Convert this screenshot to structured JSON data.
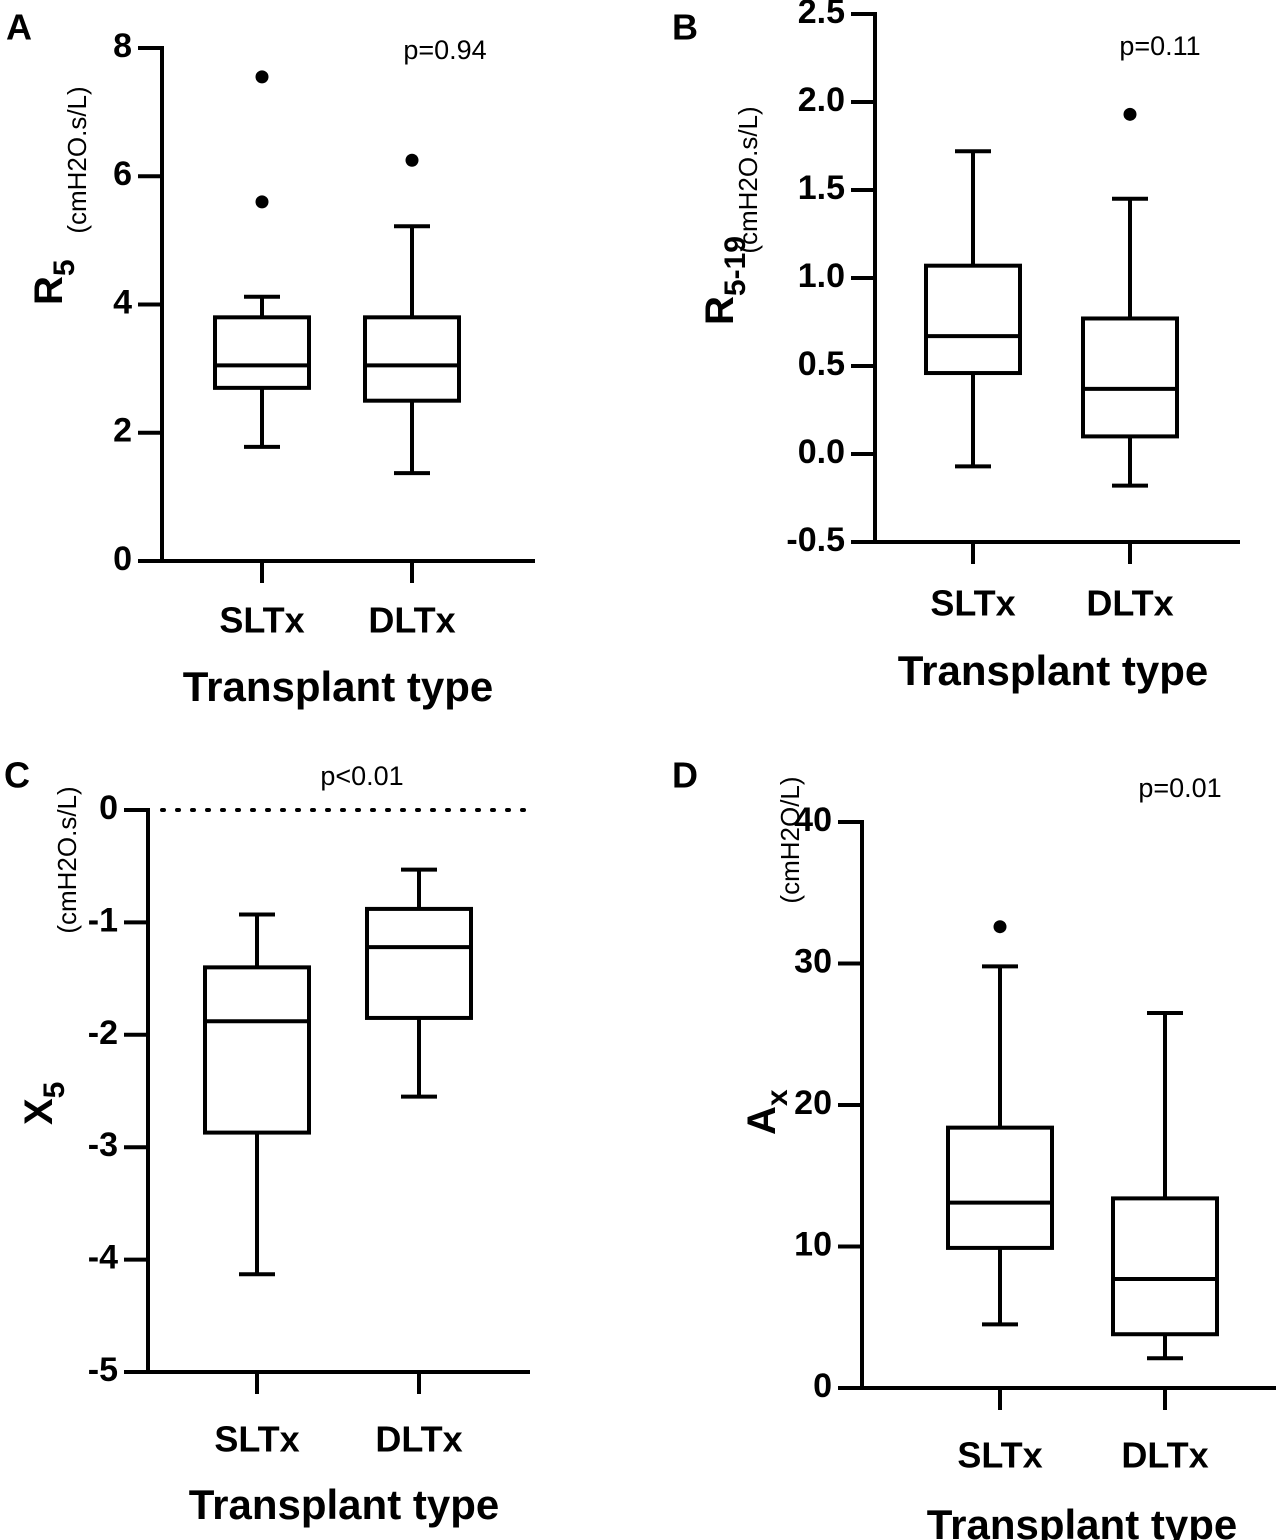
{
  "chart_data": [
    {
      "panel": "A",
      "type": "boxplot",
      "pvalue": "p=0.94",
      "ylabel": "R",
      "ylabel_sub": "5",
      "ylabel_unit": "(cmH2O.s/L)",
      "xlabel": "Transplant type",
      "categories": [
        "SLTx",
        "DLTx"
      ],
      "ylim": [
        0,
        8
      ],
      "yticks": [
        "0",
        "2",
        "4",
        "6",
        "8"
      ],
      "ytick_values": [
        0,
        2,
        4,
        6,
        8
      ],
      "boxes": [
        {
          "category": "SLTx",
          "whisker_low": 1.78,
          "q1": 2.7,
          "median": 3.05,
          "q3": 3.8,
          "whisker_high": 4.12,
          "outliers": [
            5.6,
            7.55
          ]
        },
        {
          "category": "DLTx",
          "whisker_low": 1.37,
          "q1": 2.5,
          "median": 3.05,
          "q3": 3.8,
          "whisker_high": 5.22,
          "outliers": [
            6.25
          ]
        }
      ]
    },
    {
      "panel": "B",
      "type": "boxplot",
      "pvalue": "p=0.11",
      "ylabel": "R",
      "ylabel_sub": "5-19",
      "ylabel_unit": "(cmH2O.s/L)",
      "xlabel": "Transplant type",
      "categories": [
        "SLTx",
        "DLTx"
      ],
      "ylim": [
        -0.5,
        2.5
      ],
      "yticks": [
        "-0.5",
        "0.0",
        "0.5",
        "1.0",
        "1.5",
        "2.0",
        "2.5"
      ],
      "ytick_values": [
        -0.5,
        0,
        0.5,
        1.0,
        1.5,
        2.0,
        2.5
      ],
      "boxes": [
        {
          "category": "SLTx",
          "whisker_low": -0.07,
          "q1": 0.46,
          "median": 0.67,
          "q3": 1.07,
          "whisker_high": 1.72,
          "outliers": []
        },
        {
          "category": "DLTx",
          "whisker_low": -0.18,
          "q1": 0.1,
          "median": 0.37,
          "q3": 0.77,
          "whisker_high": 1.45,
          "outliers": [
            1.93
          ]
        }
      ]
    },
    {
      "panel": "C",
      "type": "boxplot",
      "pvalue": "p<0.01",
      "ylabel": "X",
      "ylabel_sub": "5",
      "ylabel_unit": "(cmH2O.s/L)",
      "xlabel": "Transplant type",
      "categories": [
        "SLTx",
        "DLTx"
      ],
      "ylim": [
        -5,
        0
      ],
      "yticks": [
        "0",
        "-1",
        "-2",
        "-3",
        "-4",
        "-5"
      ],
      "ytick_values": [
        0,
        -1,
        -2,
        -3,
        -4,
        -5
      ],
      "reference_line": 0,
      "boxes": [
        {
          "category": "SLTx",
          "whisker_low": -4.13,
          "q1": -2.87,
          "median": -1.88,
          "q3": -1.4,
          "whisker_high": -0.93,
          "outliers": []
        },
        {
          "category": "DLTx",
          "whisker_low": -2.55,
          "q1": -1.85,
          "median": -1.22,
          "q3": -0.88,
          "whisker_high": -0.53,
          "outliers": []
        }
      ]
    },
    {
      "panel": "D",
      "type": "boxplot",
      "pvalue": "p=0.01",
      "ylabel": "A",
      "ylabel_sub": "x",
      "ylabel_unit": "(cmH2O/L)",
      "xlabel": "Transplant type",
      "categories": [
        "SLTx",
        "DLTx"
      ],
      "ylim": [
        0,
        40
      ],
      "yticks": [
        "0",
        "10",
        "20",
        "30",
        "40"
      ],
      "ytick_values": [
        0,
        10,
        20,
        30,
        40
      ],
      "boxes": [
        {
          "category": "SLTx",
          "whisker_low": 4.5,
          "q1": 9.9,
          "median": 13.1,
          "q3": 18.4,
          "whisker_high": 29.8,
          "outliers": [
            32.6
          ]
        },
        {
          "category": "DLTx",
          "whisker_low": 2.1,
          "q1": 3.8,
          "median": 7.7,
          "q3": 13.4,
          "whisker_high": 26.5,
          "outliers": []
        }
      ]
    }
  ]
}
